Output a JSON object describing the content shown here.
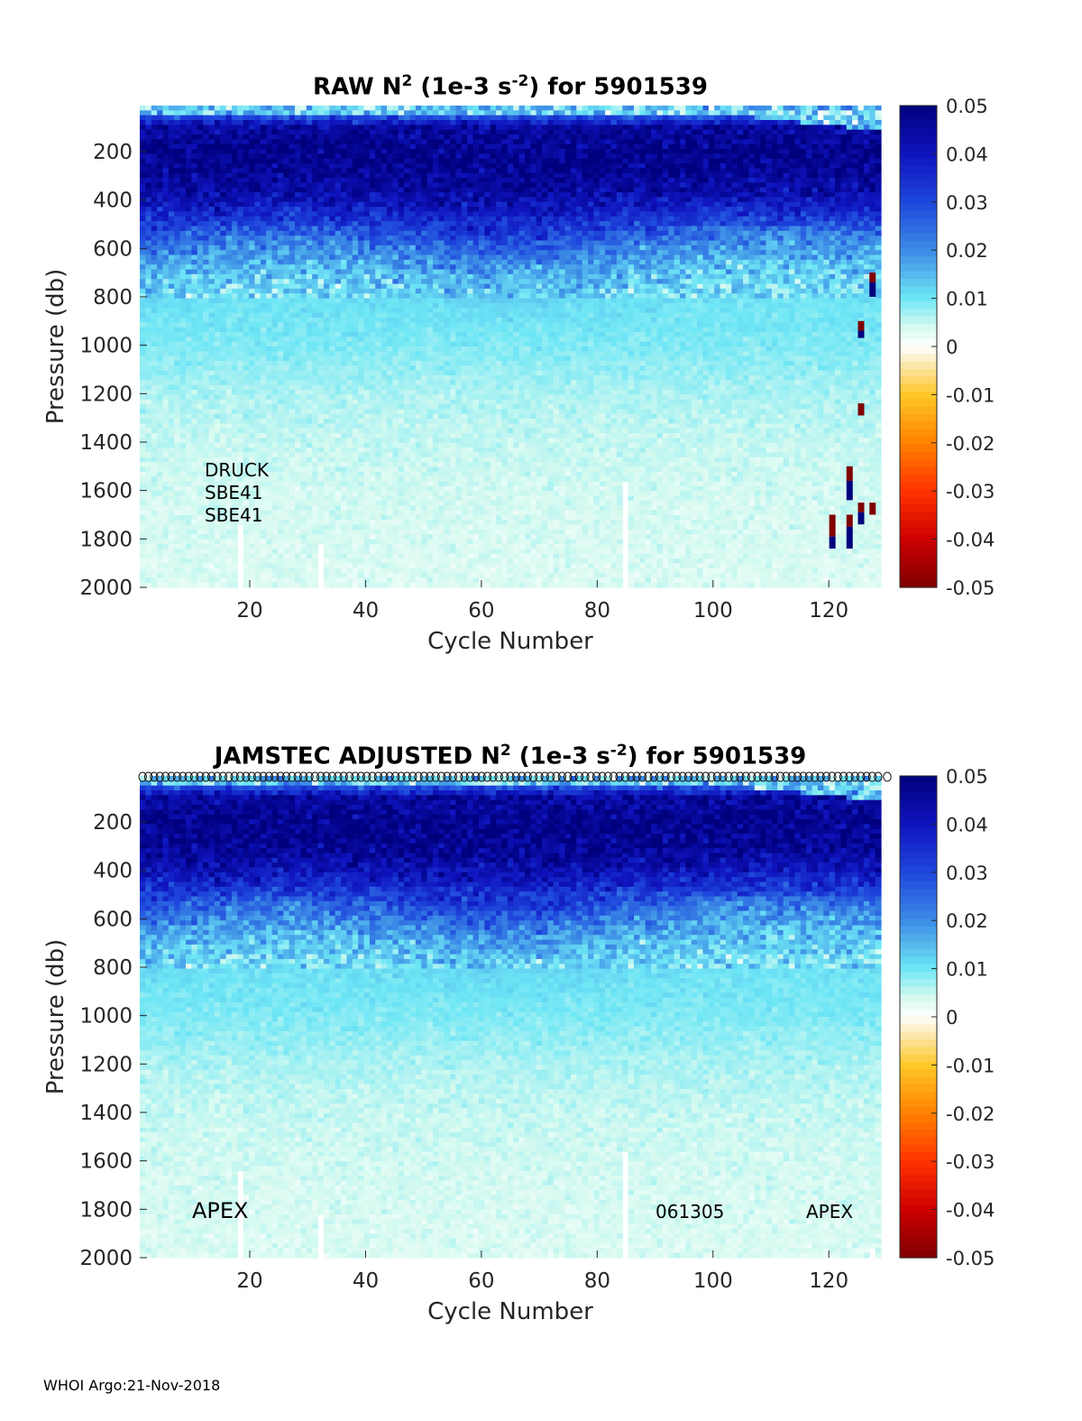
{
  "chart_data": [
    {
      "type": "heatmap",
      "title_prefix": "RAW N",
      "title_sup": "2",
      "title_mid": " (1e-3 s",
      "title_sup2": "-2",
      "title_suffix": ") for 5901539",
      "xlabel": "Cycle Number",
      "ylabel": "Pressure (db)",
      "xlim": [
        1,
        129
      ],
      "ylim": [
        2000,
        10
      ],
      "xticks": [
        "20",
        "40",
        "60",
        "80",
        "100",
        "120"
      ],
      "xtick_values": [
        20,
        40,
        60,
        80,
        100,
        120
      ],
      "yticks": [
        "200",
        "400",
        "600",
        "800",
        "1000",
        "1200",
        "1400",
        "1600",
        "1800",
        "2000"
      ],
      "ytick_values": [
        200,
        400,
        600,
        800,
        1000,
        1200,
        1400,
        1600,
        1800,
        2000
      ],
      "colorbar": {
        "labels": [
          "0.05",
          "0.04",
          "0.03",
          "0.02",
          "0.01",
          "0",
          "-0.01",
          "-0.02",
          "-0.03",
          "-0.04",
          "-0.05"
        ],
        "values": [
          0.05,
          0.04,
          0.03,
          0.02,
          0.01,
          0,
          -0.01,
          -0.02,
          -0.03,
          -0.04,
          -0.05
        ],
        "colormap": "diverging blue-cyan-white-yellow-red"
      },
      "profile": {
        "pressure_db": [
          10,
          100,
          200,
          300,
          400,
          500,
          600,
          700,
          800,
          1000,
          1200,
          1400,
          1600,
          1800,
          2000
        ],
        "n2": [
          0.012,
          0.045,
          0.048,
          0.047,
          0.042,
          0.032,
          0.022,
          0.015,
          0.011,
          0.009,
          0.0065,
          0.005,
          0.0042,
          0.0038,
          0.0035
        ]
      },
      "gaps": [
        {
          "cycle": 18,
          "from_db": 1750,
          "to_db": 2000
        },
        {
          "cycle": 32,
          "from_db": 1830,
          "to_db": 2000
        },
        {
          "cycle": 85,
          "from_db": 1560,
          "to_db": 2000
        }
      ],
      "anomalies": [
        {
          "cycle": 128,
          "from_db": 700,
          "to_db": 740,
          "value": -0.05
        },
        {
          "cycle": 128,
          "from_db": 740,
          "to_db": 800,
          "value": 0.05
        },
        {
          "cycle": 126,
          "from_db": 900,
          "to_db": 940,
          "value": -0.05
        },
        {
          "cycle": 126,
          "from_db": 940,
          "to_db": 970,
          "value": 0.05
        },
        {
          "cycle": 126,
          "from_db": 1240,
          "to_db": 1290,
          "value": -0.05
        },
        {
          "cycle": 124,
          "from_db": 1500,
          "to_db": 1560,
          "value": -0.05
        },
        {
          "cycle": 124,
          "from_db": 1560,
          "to_db": 1640,
          "value": 0.05
        },
        {
          "cycle": 126,
          "from_db": 1650,
          "to_db": 1690,
          "value": -0.05
        },
        {
          "cycle": 126,
          "from_db": 1690,
          "to_db": 1740,
          "value": 0.05
        },
        {
          "cycle": 128,
          "from_db": 1650,
          "to_db": 1700,
          "value": -0.05
        },
        {
          "cycle": 121,
          "from_db": 1700,
          "to_db": 1790,
          "value": -0.05
        },
        {
          "cycle": 121,
          "from_db": 1790,
          "to_db": 1840,
          "value": 0.05
        },
        {
          "cycle": 124,
          "from_db": 1700,
          "to_db": 1750,
          "value": -0.05
        },
        {
          "cycle": 124,
          "from_db": 1750,
          "to_db": 1840,
          "value": 0.05
        }
      ],
      "annotations": [
        "DRUCK",
        "SBE41",
        "SBE41"
      ]
    },
    {
      "type": "heatmap",
      "title_prefix": "JAMSTEC  ADJUSTED N",
      "title_sup": "2",
      "title_mid": " (1e-3 s",
      "title_sup2": "-2",
      "title_suffix": ") for 5901539",
      "xlabel": "Cycle Number",
      "ylabel": "Pressure (db)",
      "xlim": [
        1,
        129
      ],
      "ylim": [
        2000,
        10
      ],
      "xticks": [
        "20",
        "40",
        "60",
        "80",
        "100",
        "120"
      ],
      "xtick_values": [
        20,
        40,
        60,
        80,
        100,
        120
      ],
      "yticks": [
        "200",
        "400",
        "600",
        "800",
        "1000",
        "1200",
        "1400",
        "1600",
        "1800",
        "2000"
      ],
      "ytick_values": [
        200,
        400,
        600,
        800,
        1000,
        1200,
        1400,
        1600,
        1800,
        2000
      ],
      "colorbar": {
        "labels": [
          "0.05",
          "0.04",
          "0.03",
          "0.02",
          "0.01",
          "0",
          "-0.01",
          "-0.02",
          "-0.03",
          "-0.04",
          "-0.05"
        ],
        "values": [
          0.05,
          0.04,
          0.03,
          0.02,
          0.01,
          0,
          -0.01,
          -0.02,
          -0.03,
          -0.04,
          -0.05
        ],
        "colormap": "diverging blue-cyan-white-yellow-red"
      },
      "profile": {
        "pressure_db": [
          10,
          100,
          200,
          300,
          400,
          500,
          600,
          700,
          800,
          1000,
          1200,
          1400,
          1600,
          1800,
          2000
        ],
        "n2": [
          0.012,
          0.045,
          0.048,
          0.047,
          0.042,
          0.032,
          0.022,
          0.015,
          0.011,
          0.009,
          0.0065,
          0.005,
          0.0042,
          0.0038,
          0.0035
        ]
      },
      "gaps": [
        {
          "cycle": 18,
          "from_db": 1650,
          "to_db": 2000
        },
        {
          "cycle": 32,
          "from_db": 1830,
          "to_db": 2000
        },
        {
          "cycle": 85,
          "from_db": 1560,
          "to_db": 2000
        },
        {
          "cycle": 128,
          "from_db": 1960,
          "to_db": 2000
        }
      ],
      "anomalies": [],
      "qc_markers": "circle at top of every cycle",
      "annotations_left": [
        "APEX"
      ],
      "annotations_right": [
        "061305",
        "APEX"
      ]
    }
  ],
  "footer": {
    "text": "WHOI Argo:21-Nov-2018"
  }
}
